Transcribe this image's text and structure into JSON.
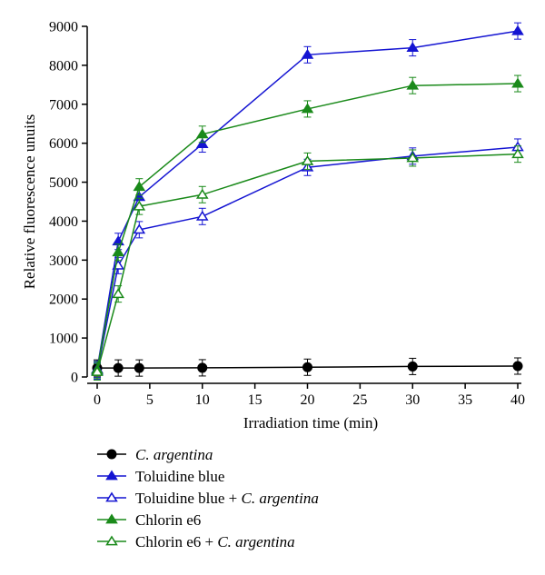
{
  "chart_data": {
    "type": "line",
    "xlabel": "Irradiation time (min)",
    "ylabel": "Relative fluorescence unuits",
    "xlim": [
      0,
      40
    ],
    "ylim": [
      0,
      9000
    ],
    "xticks": [
      0,
      5,
      10,
      15,
      20,
      25,
      30,
      35,
      40
    ],
    "yticks": [
      0,
      1000,
      2000,
      3000,
      4000,
      5000,
      6000,
      7000,
      8000,
      9000
    ],
    "x": [
      0,
      2,
      4,
      10,
      20,
      30,
      40
    ],
    "grid": false,
    "legend_position": "bottom-left, below plot",
    "series": [
      {
        "name": "C. argentina",
        "name_parts": [
          {
            "text": "C. argentina",
            "italic": true
          }
        ],
        "color": "#000000",
        "marker": "circle",
        "filled": true,
        "values": [
          230,
          230,
          230,
          235,
          250,
          270,
          280
        ]
      },
      {
        "name": "Toluidine blue",
        "name_parts": [
          {
            "text": "Toluidine blue",
            "italic": false
          }
        ],
        "color": "#1414d2",
        "marker": "triangle",
        "filled": true,
        "values": [
          200,
          3480,
          4620,
          5980,
          8270,
          8450,
          8880
        ]
      },
      {
        "name": "Toluidine blue + C. argentina",
        "name_parts": [
          {
            "text": "Toluidine blue + ",
            "italic": false
          },
          {
            "text": "C. argentina",
            "italic": true
          }
        ],
        "color": "#1414d2",
        "marker": "triangle",
        "filled": false,
        "values": [
          150,
          2860,
          3780,
          4120,
          5380,
          5670,
          5900
        ]
      },
      {
        "name": "Chlorin e6",
        "name_parts": [
          {
            "text": "Chlorin e6",
            "italic": false
          }
        ],
        "color": "#1a8a1a",
        "marker": "triangle",
        "filled": true,
        "values": [
          180,
          3200,
          4880,
          6230,
          6880,
          7480,
          7530
        ]
      },
      {
        "name": "Chlorin e6 + C. argentina",
        "name_parts": [
          {
            "text": "Chlorin e6 + ",
            "italic": false
          },
          {
            "text": "C. argentina",
            "italic": true
          }
        ],
        "color": "#1a8a1a",
        "marker": "triangle",
        "filled": false,
        "values": [
          130,
          2130,
          4380,
          4680,
          5540,
          5620,
          5720
        ]
      }
    ]
  }
}
